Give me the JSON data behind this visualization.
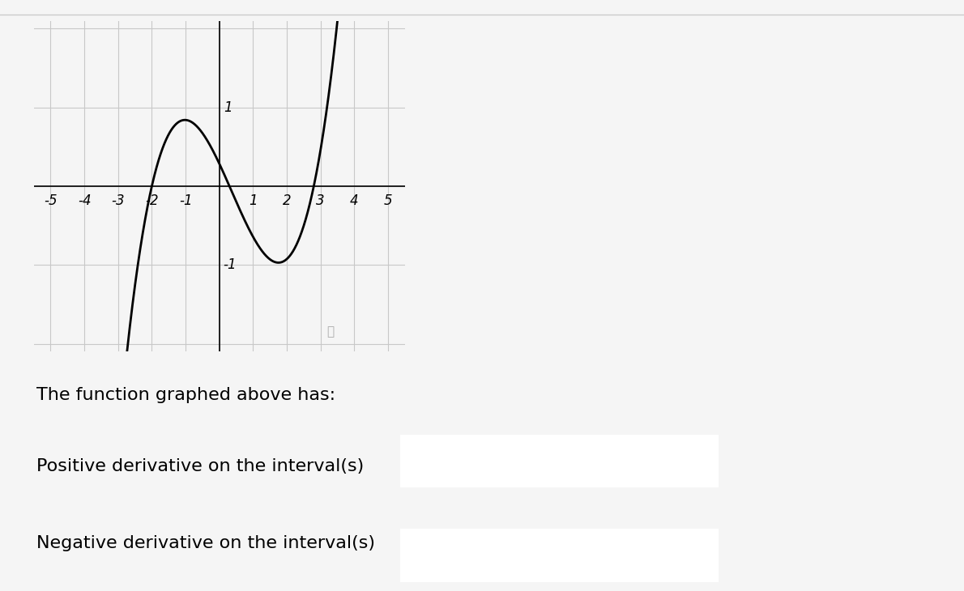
{
  "xlim": [
    -5.5,
    5.5
  ],
  "ylim": [
    -2.1,
    2.1
  ],
  "xticks": [
    -5,
    -4,
    -3,
    -2,
    -1,
    1,
    2,
    3,
    4,
    5
  ],
  "yticks": [
    -1,
    1
  ],
  "grid_color": "#c8c8c8",
  "curve_color": "#000000",
  "curve_linewidth": 2.0,
  "background_color": "#f5f5f5",
  "text1": "The function graphed above has:",
  "text2": "Positive derivative on the interval(s)",
  "text3": "Negative derivative on the interval(s)",
  "text_fontsize": 16,
  "text_color": "#000000",
  "box_edge_color": "#999999",
  "axis_label_fontsize": 12,
  "axis_label_color": "#000000",
  "curve_roots": [
    -2.0,
    0.3,
    2.8
  ],
  "curve_scale": 0.17,
  "top_line_color": "#cccccc"
}
